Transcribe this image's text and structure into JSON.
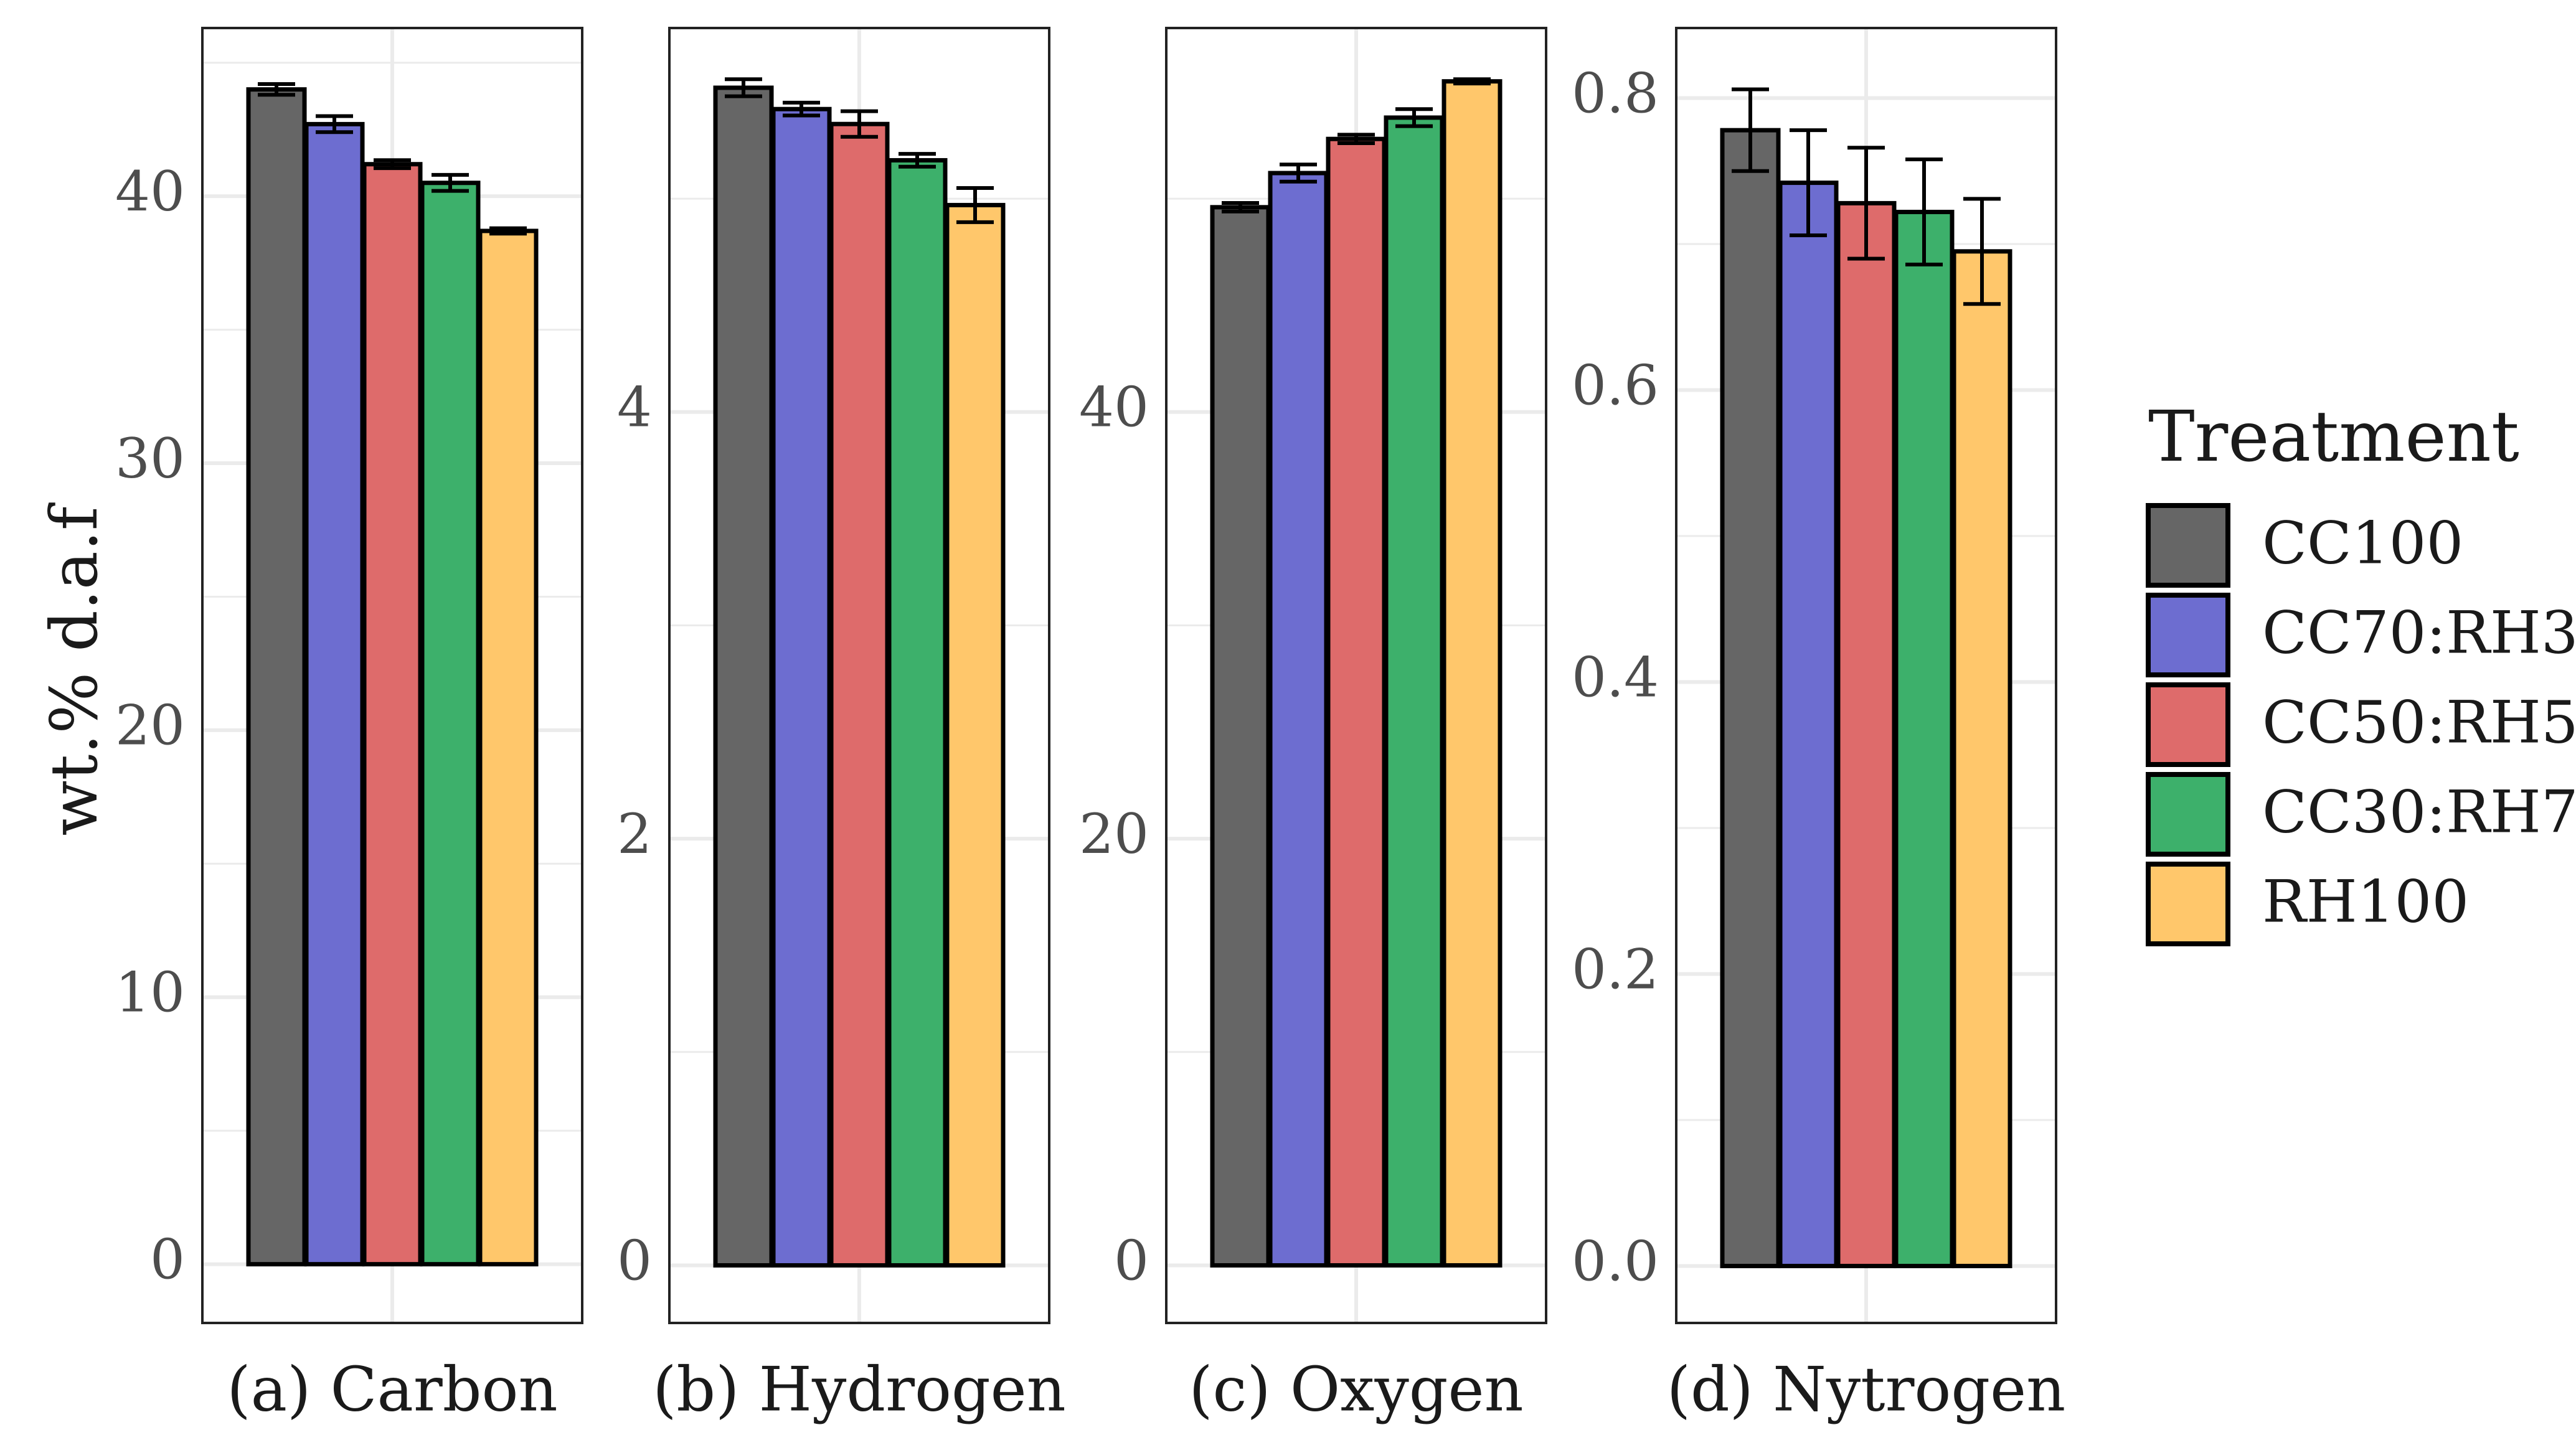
{
  "colors": {
    "CC100": "#666666",
    "CC70:RH30": "#6d6dd0",
    "CC50:RH50": "#de6b6b",
    "CC30:RH70": "#3db06b",
    "RH100": "#ffc76b",
    "panel_border": "#222222",
    "grid": "#ebebeb",
    "errorbar": "#000000"
  },
  "chart_data": {
    "type": "bar",
    "ylabel": "wt.% d.a.f",
    "legend": {
      "title": "Treatment",
      "placement": "right",
      "entries": [
        "CC100",
        "CC70:RH30",
        "CC50:RH50",
        "CC30:RH70",
        "RH100"
      ]
    },
    "grid": true,
    "panels": [
      {
        "title": "(a) Carbon",
        "ylim": [
          -2.2,
          46.3
        ],
        "yticks": [
          0,
          10,
          20,
          30,
          40
        ],
        "ytick_labels": [
          "0",
          "10",
          "20",
          "30",
          "40"
        ],
        "series": [
          {
            "name": "CC100",
            "value": 44.0,
            "err": 0.2
          },
          {
            "name": "CC70:RH30",
            "value": 42.7,
            "err": 0.3
          },
          {
            "name": "CC50:RH50",
            "value": 41.2,
            "err": 0.15
          },
          {
            "name": "CC30:RH70",
            "value": 40.5,
            "err": 0.3
          },
          {
            "name": "RH100",
            "value": 38.7,
            "err": 0.1
          }
        ]
      },
      {
        "title": "(b) Hydrogen",
        "ylim": [
          -0.27,
          5.8
        ],
        "yticks": [
          0,
          2,
          4
        ],
        "ytick_labels": [
          "0",
          "2",
          "4"
        ],
        "series": [
          {
            "name": "CC100",
            "value": 5.52,
            "err": 0.04
          },
          {
            "name": "CC70:RH30",
            "value": 5.42,
            "err": 0.03
          },
          {
            "name": "CC50:RH50",
            "value": 5.35,
            "err": 0.06
          },
          {
            "name": "CC30:RH70",
            "value": 5.18,
            "err": 0.03
          },
          {
            "name": "RH100",
            "value": 4.97,
            "err": 0.08
          }
        ]
      },
      {
        "title": "(c) Oxygen",
        "ylim": [
          -2.7,
          58.0
        ],
        "yticks": [
          0,
          20,
          40
        ],
        "ytick_labels": [
          "0",
          "20",
          "40"
        ],
        "series": [
          {
            "name": "CC100",
            "value": 49.6,
            "err": 0.2
          },
          {
            "name": "CC70:RH30",
            "value": 51.2,
            "err": 0.4
          },
          {
            "name": "CC50:RH50",
            "value": 52.8,
            "err": 0.2
          },
          {
            "name": "CC30:RH70",
            "value": 53.8,
            "err": 0.4
          },
          {
            "name": "RH100",
            "value": 55.5,
            "err": 0.1
          }
        ]
      },
      {
        "title": "(d) Nytrogen",
        "ylim": [
          -0.039,
          0.848
        ],
        "yticks": [
          0.0,
          0.2,
          0.4,
          0.6,
          0.8
        ],
        "ytick_labels": [
          "0.0",
          "0.2",
          "0.4",
          "0.6",
          "0.8"
        ],
        "series": [
          {
            "name": "CC100",
            "value": 0.778,
            "err": 0.028
          },
          {
            "name": "CC70:RH30",
            "value": 0.742,
            "err": 0.036
          },
          {
            "name": "CC50:RH50",
            "value": 0.728,
            "err": 0.038
          },
          {
            "name": "CC30:RH70",
            "value": 0.722,
            "err": 0.036
          },
          {
            "name": "RH100",
            "value": 0.695,
            "err": 0.036
          }
        ]
      }
    ]
  }
}
